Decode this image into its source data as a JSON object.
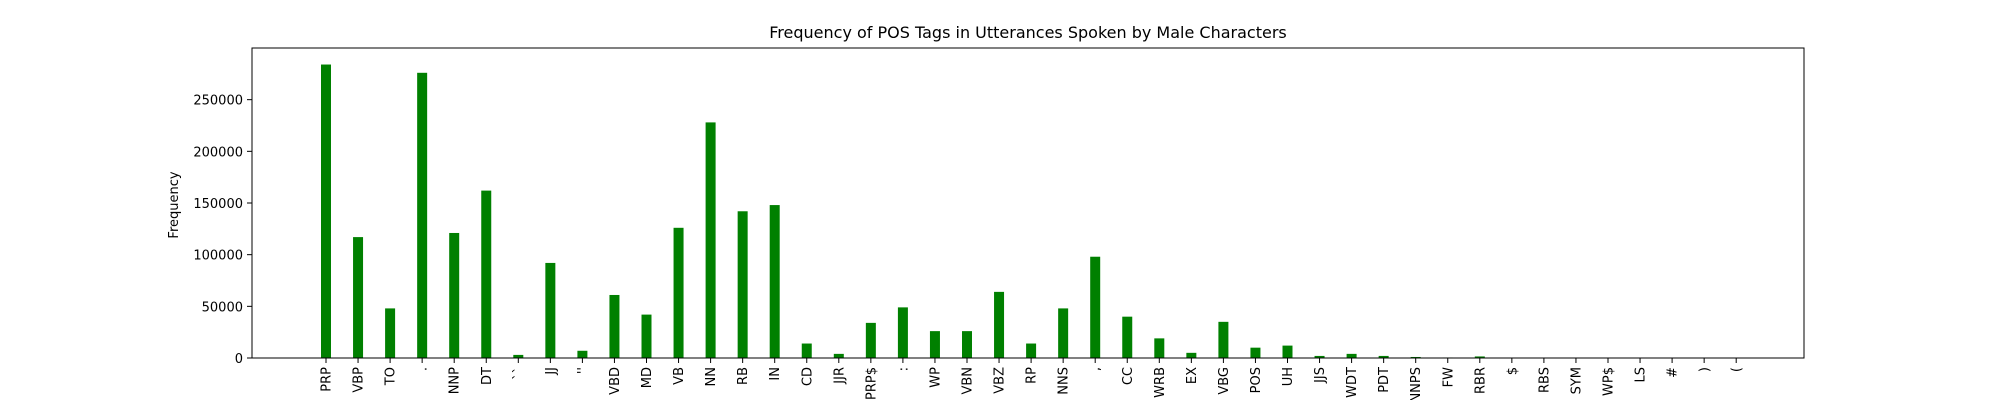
{
  "chart_data": {
    "type": "bar",
    "title": "Frequency of POS Tags in Utterances Spoken by Male Characters",
    "xlabel": "",
    "ylabel": "Frequency",
    "ylim": [
      0,
      300000
    ],
    "yticks": [
      0,
      50000,
      100000,
      150000,
      200000,
      250000
    ],
    "ytick_labels": [
      "0",
      "50000",
      "100000",
      "150000",
      "200000",
      "250000"
    ],
    "grid": false,
    "legend": "none",
    "bar_color": "#008000",
    "categories": [
      "PRP",
      "VBP",
      "TO",
      ".",
      "NNP",
      "DT",
      "``",
      "JJ",
      "''",
      "VBD",
      "MD",
      "VB",
      "NN",
      "RB",
      "IN",
      "CD",
      "JJR",
      "PRP$",
      ":",
      "WP",
      "VBN",
      "VBZ",
      "RP",
      "NNS",
      ",",
      "CC",
      "WRB",
      "EX",
      "VBG",
      "POS",
      "UH",
      "JJS",
      "WDT",
      "PDT",
      "NNPS",
      "FW",
      "RBR",
      "$",
      "RBS",
      "SYM",
      "WP$",
      "LS",
      "#",
      ")",
      "("
    ],
    "values": [
      284000,
      117000,
      48000,
      276000,
      121000,
      162000,
      3000,
      92000,
      7000,
      61000,
      42000,
      126000,
      228000,
      142000,
      148000,
      14000,
      4000,
      34000,
      49000,
      26000,
      26000,
      64000,
      14000,
      48000,
      98000,
      40000,
      19000,
      5000,
      35000,
      10000,
      12000,
      2000,
      4000,
      2000,
      1000,
      500,
      1500,
      200,
      100,
      100,
      100,
      50,
      50,
      30,
      30
    ]
  }
}
